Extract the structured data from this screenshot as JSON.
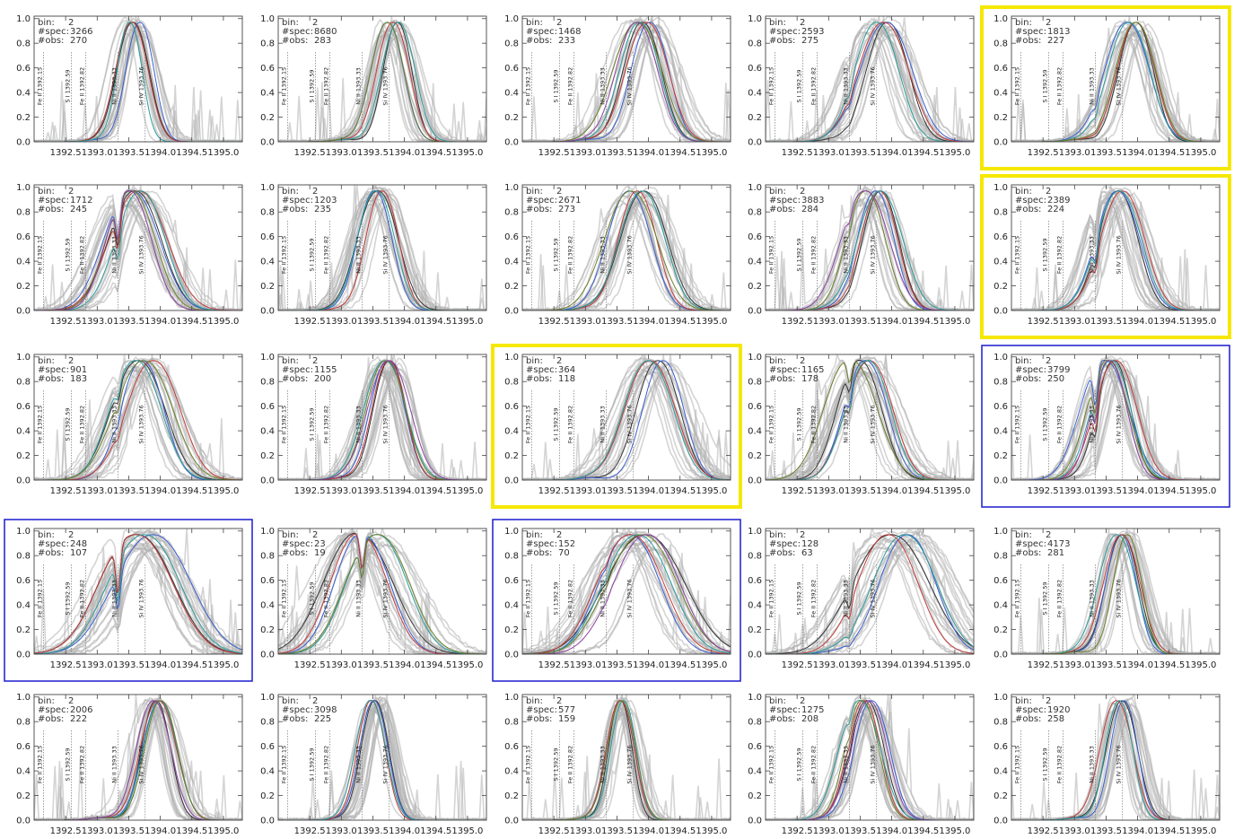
{
  "chart_data": {
    "type": "line",
    "layout": {
      "rows": 5,
      "cols": 5
    },
    "x_ticks": [
      "1392.5",
      "1393.0",
      "1393.5",
      "1394.0",
      "1394.5",
      "1395.0"
    ],
    "y_ticks": [
      "0.0",
      "0.2",
      "0.4",
      "0.6",
      "0.8",
      "1.0"
    ],
    "xlim": [
      1392.0,
      1395.3
    ],
    "ylim": [
      0,
      1.02
    ],
    "grid": false,
    "text_labels": {
      "bin": "bin:",
      "spec": "#spec:",
      "obs": "#obs:"
    },
    "line_markers": [
      {
        "label": "Fe II 1392.15",
        "x": 1392.15
      },
      {
        "label": "S I 1392.59",
        "x": 1392.59
      },
      {
        "label": "Fe II 1392.82",
        "x": 1392.82
      },
      {
        "label": "Ni II 1393.33",
        "x": 1393.33
      },
      {
        "label": "Si IV 1393.76",
        "x": 1393.76
      }
    ],
    "colors": {
      "background_spectra": "#b0b0b0",
      "yellow_highlight": "#f5e800",
      "blue_highlight": "#1c1ccf",
      "representative": [
        "#333333",
        "#3a5fd0",
        "#c23b3b",
        "#2a9a9a",
        "#6b7f2a",
        "#8a3fa0",
        "#2b8a3e",
        "#7a7aff"
      ]
    },
    "panels": [
      {
        "bin": "2",
        "spec": "3266",
        "obs": "270",
        "peak": 1393.6,
        "width": 0.35,
        "dip": 0,
        "highlight": "none"
      },
      {
        "bin": "2",
        "spec": "8680",
        "obs": "283",
        "peak": 1393.8,
        "width": 0.42,
        "dip": 0,
        "highlight": "none"
      },
      {
        "bin": "2",
        "spec": "1468",
        "obs": "233",
        "peak": 1393.95,
        "width": 0.55,
        "dip": 0,
        "highlight": "none"
      },
      {
        "bin": "2",
        "spec": "2593",
        "obs": "275",
        "peak": 1393.8,
        "width": 0.55,
        "dip": 0.15,
        "highlight": "none"
      },
      {
        "bin": "2",
        "spec": "1813",
        "obs": "227",
        "peak": 1393.95,
        "width": 0.5,
        "dip": 0.2,
        "highlight": "yellow"
      },
      {
        "bin": "2",
        "spec": "1712",
        "obs": "245",
        "peak": 1393.6,
        "width": 0.6,
        "dip": 0.35,
        "highlight": "none"
      },
      {
        "bin": "2",
        "spec": "1203",
        "obs": "235",
        "peak": 1393.6,
        "width": 0.45,
        "dip": 0,
        "highlight": "none"
      },
      {
        "bin": "2",
        "spec": "2671",
        "obs": "273",
        "peak": 1393.8,
        "width": 0.55,
        "dip": 0,
        "highlight": "none"
      },
      {
        "bin": "2",
        "spec": "3883",
        "obs": "284",
        "peak": 1393.7,
        "width": 0.5,
        "dip": 0.1,
        "highlight": "none"
      },
      {
        "bin": "2",
        "spec": "2389",
        "obs": "224",
        "peak": 1393.7,
        "width": 0.55,
        "dip": 0.3,
        "highlight": "yellow"
      },
      {
        "bin": "2",
        "spec": "901",
        "obs": "183",
        "peak": 1393.75,
        "width": 0.6,
        "dip": 0.15,
        "highlight": "none"
      },
      {
        "bin": "2",
        "spec": "1155",
        "obs": "200",
        "peak": 1393.75,
        "width": 0.45,
        "dip": 0,
        "highlight": "none"
      },
      {
        "bin": "2",
        "spec": "364",
        "obs": "118",
        "peak": 1394.1,
        "width": 0.6,
        "dip": 0,
        "highlight": "yellow"
      },
      {
        "bin": "2",
        "spec": "1165",
        "obs": "178",
        "peak": 1393.5,
        "width": 0.6,
        "dip": 0.2,
        "highlight": "none"
      },
      {
        "bin": "2",
        "spec": "3799",
        "obs": "250",
        "peak": 1393.6,
        "width": 0.5,
        "dip": 0.35,
        "highlight": "blue"
      },
      {
        "bin": "2",
        "spec": "248",
        "obs": "107",
        "peak": 1393.7,
        "width": 0.8,
        "dip": 0.45,
        "highlight": "blue"
      },
      {
        "bin": "2",
        "spec": "23",
        "obs": "19",
        "peak": 1393.4,
        "width": 0.75,
        "dip": 0.3,
        "highlight": "none"
      },
      {
        "bin": "2",
        "spec": "152",
        "obs": "70",
        "peak": 1393.9,
        "width": 0.85,
        "dip": 0.05,
        "highlight": "blue"
      },
      {
        "bin": "2",
        "spec": "128",
        "obs": "63",
        "peak": 1394.1,
        "width": 0.8,
        "dip": 0.3,
        "highlight": "none"
      },
      {
        "bin": "2",
        "spec": "4173",
        "obs": "281",
        "peak": 1393.75,
        "width": 0.4,
        "dip": 0,
        "highlight": "none"
      },
      {
        "bin": "2",
        "spec": "2006",
        "obs": "222",
        "peak": 1393.95,
        "width": 0.4,
        "dip": 0,
        "highlight": "none"
      },
      {
        "bin": "2",
        "spec": "3098",
        "obs": "225",
        "peak": 1393.55,
        "width": 0.35,
        "dip": 0,
        "highlight": "none"
      },
      {
        "bin": "2",
        "spec": "577",
        "obs": "159",
        "peak": 1393.6,
        "width": 0.3,
        "dip": 0,
        "highlight": "none"
      },
      {
        "bin": "2",
        "spec": "1275",
        "obs": "208",
        "peak": 1393.6,
        "width": 0.45,
        "dip": 0.1,
        "highlight": "none"
      },
      {
        "bin": "2",
        "spec": "1920",
        "obs": "258",
        "peak": 1393.75,
        "width": 0.35,
        "dip": 0,
        "highlight": "none"
      }
    ]
  }
}
